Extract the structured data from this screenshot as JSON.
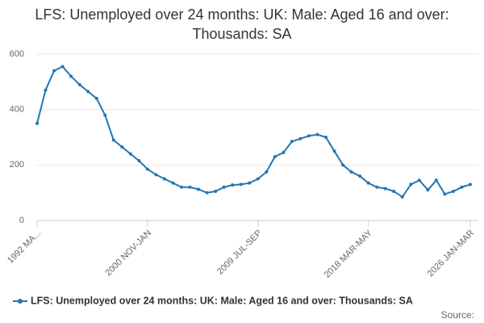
{
  "chart_data": {
    "type": "line",
    "title": "LFS: Unemployed over 24 months: UK: Male: Aged 16 and over: Thousands: SA",
    "categories": [
      "1992 MA...",
      null,
      null,
      null,
      null,
      null,
      null,
      null,
      null,
      null,
      null,
      null,
      null,
      "2000 NOV-JAN",
      null,
      null,
      null,
      null,
      null,
      null,
      null,
      null,
      null,
      null,
      null,
      null,
      "2009 JUL-SEP",
      null,
      null,
      null,
      null,
      null,
      null,
      null,
      null,
      null,
      null,
      null,
      null,
      "2018 MAR-MAY",
      null,
      null,
      null,
      null,
      null,
      null,
      null,
      null,
      null,
      null,
      null,
      "2026 JAN-MAR"
    ],
    "series": [
      {
        "name": "LFS: Unemployed over 24 months: UK: Male: Aged 16 and over: Thousands: SA",
        "color": "#2277b4",
        "values": [
          350,
          470,
          540,
          555,
          520,
          490,
          465,
          440,
          380,
          290,
          265,
          240,
          215,
          185,
          165,
          150,
          135,
          120,
          120,
          112,
          100,
          105,
          120,
          128,
          130,
          135,
          150,
          175,
          230,
          245,
          285,
          295,
          305,
          310,
          300,
          250,
          200,
          175,
          160,
          135,
          120,
          115,
          105,
          85,
          130,
          145,
          110,
          145,
          95,
          105,
          120,
          130
        ]
      }
    ],
    "ylim": [
      0,
      600
    ],
    "yticks": [
      0,
      200,
      400,
      600
    ],
    "grid": true,
    "source": "Source:"
  }
}
